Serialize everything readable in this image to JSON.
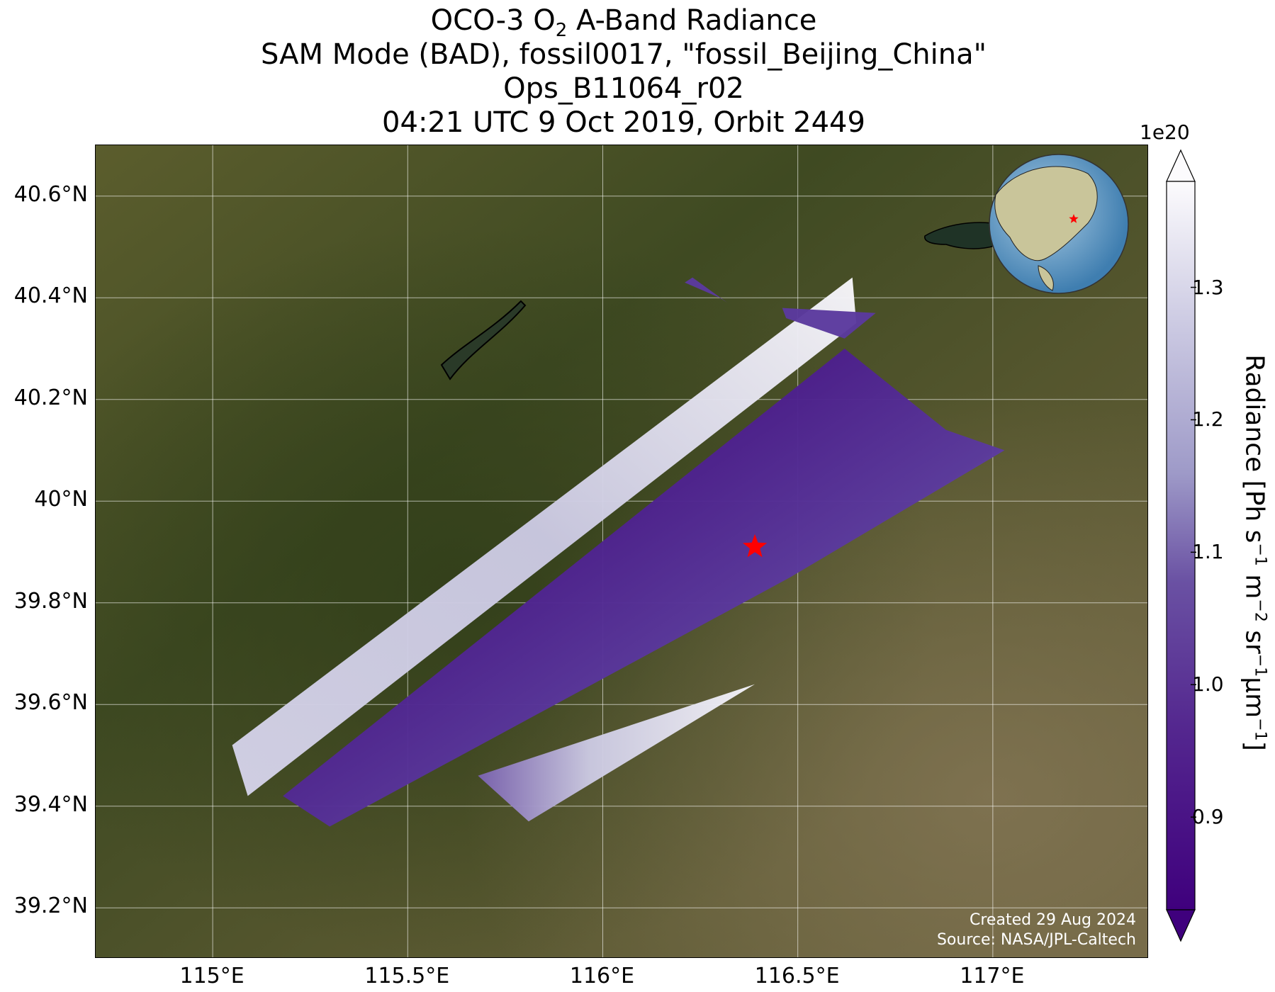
{
  "title": {
    "line1_prefix": "OCO-3 O",
    "line1_sub": "2",
    "line1_suffix": " A-Band Radiance",
    "line2": "SAM Mode (BAD), fossil0017, \"fossil_Beijing_China\"",
    "line3": "Ops_B11064_r02",
    "line4": "04:21 UTC 9 Oct 2019, Orbit 2449"
  },
  "map": {
    "lon_range": [
      114.7,
      117.4
    ],
    "lat_range": [
      39.1,
      40.7
    ],
    "x_ticks": [
      {
        "value": 115.0,
        "label": "115°E"
      },
      {
        "value": 115.5,
        "label": "115.5°E"
      },
      {
        "value": 116.0,
        "label": "116°E"
      },
      {
        "value": 116.5,
        "label": "116.5°E"
      },
      {
        "value": 117.0,
        "label": "117°E"
      }
    ],
    "y_ticks": [
      {
        "value": 39.2,
        "label": "39.2°N"
      },
      {
        "value": 39.4,
        "label": "39.4°N"
      },
      {
        "value": 39.6,
        "label": "39.6°N"
      },
      {
        "value": 39.8,
        "label": "39.8°N"
      },
      {
        "value": 40.0,
        "label": "40°N"
      },
      {
        "value": 40.2,
        "label": "40.2°N"
      },
      {
        "value": 40.4,
        "label": "40.4°N"
      },
      {
        "value": 40.6,
        "label": "40.6°N"
      }
    ],
    "grid": true,
    "target": {
      "lon": 116.39,
      "lat": 39.91,
      "marker": "red-star"
    },
    "background": "satellite imagery (green/brown terrain)",
    "inset_globe": {
      "position": "top-right",
      "marker": "red-star"
    }
  },
  "swaths": [
    {
      "name": "upper swath",
      "corners": [
        [
          115.05,
          39.52
        ],
        [
          116.64,
          40.44
        ],
        [
          116.65,
          40.35
        ],
        [
          115.09,
          39.42
        ]
      ],
      "dominant": "light"
    },
    {
      "name": "main swath",
      "corners": [
        [
          115.18,
          39.42
        ],
        [
          116.62,
          40.3
        ],
        [
          116.88,
          40.14
        ],
        [
          117.03,
          40.1
        ],
        [
          116.48,
          39.85
        ],
        [
          115.3,
          39.36
        ]
      ],
      "dominant": "dark"
    },
    {
      "name": "lower swath",
      "corners": [
        [
          115.68,
          39.46
        ],
        [
          116.39,
          39.64
        ],
        [
          115.81,
          39.37
        ]
      ],
      "dominant": "light"
    },
    {
      "name": "small strip 1",
      "corners": [
        [
          116.23,
          40.44
        ],
        [
          116.32,
          40.39
        ],
        [
          116.3,
          40.4
        ],
        [
          116.21,
          40.43
        ]
      ],
      "dominant": "dark"
    },
    {
      "name": "small strip 2",
      "corners": [
        [
          116.46,
          40.38
        ],
        [
          116.7,
          40.37
        ],
        [
          116.62,
          40.32
        ],
        [
          116.47,
          40.36
        ]
      ],
      "dominant": "dark"
    }
  ],
  "colorbar": {
    "label_main": "Radiance [Ph s",
    "label_full": "Radiance [Ph s⁻¹ m⁻² sr⁻¹μm⁻¹]",
    "exponent": "1e20",
    "range": [
      0.83,
      1.38
    ],
    "ticks": [
      {
        "value": 0.9,
        "label": "0.9"
      },
      {
        "value": 1.0,
        "label": "1.0"
      },
      {
        "value": 1.1,
        "label": "1.1"
      },
      {
        "value": 1.2,
        "label": "1.2"
      },
      {
        "value": 1.3,
        "label": "1.3"
      }
    ],
    "colormap": "Purples_r",
    "color_dark": "#3f007d",
    "color_light": "#fcfbfd",
    "extend": "both"
  },
  "credits": {
    "line1": "Created 29 Aug 2024",
    "line2": "Source: NASA/JPL-Caltech"
  }
}
